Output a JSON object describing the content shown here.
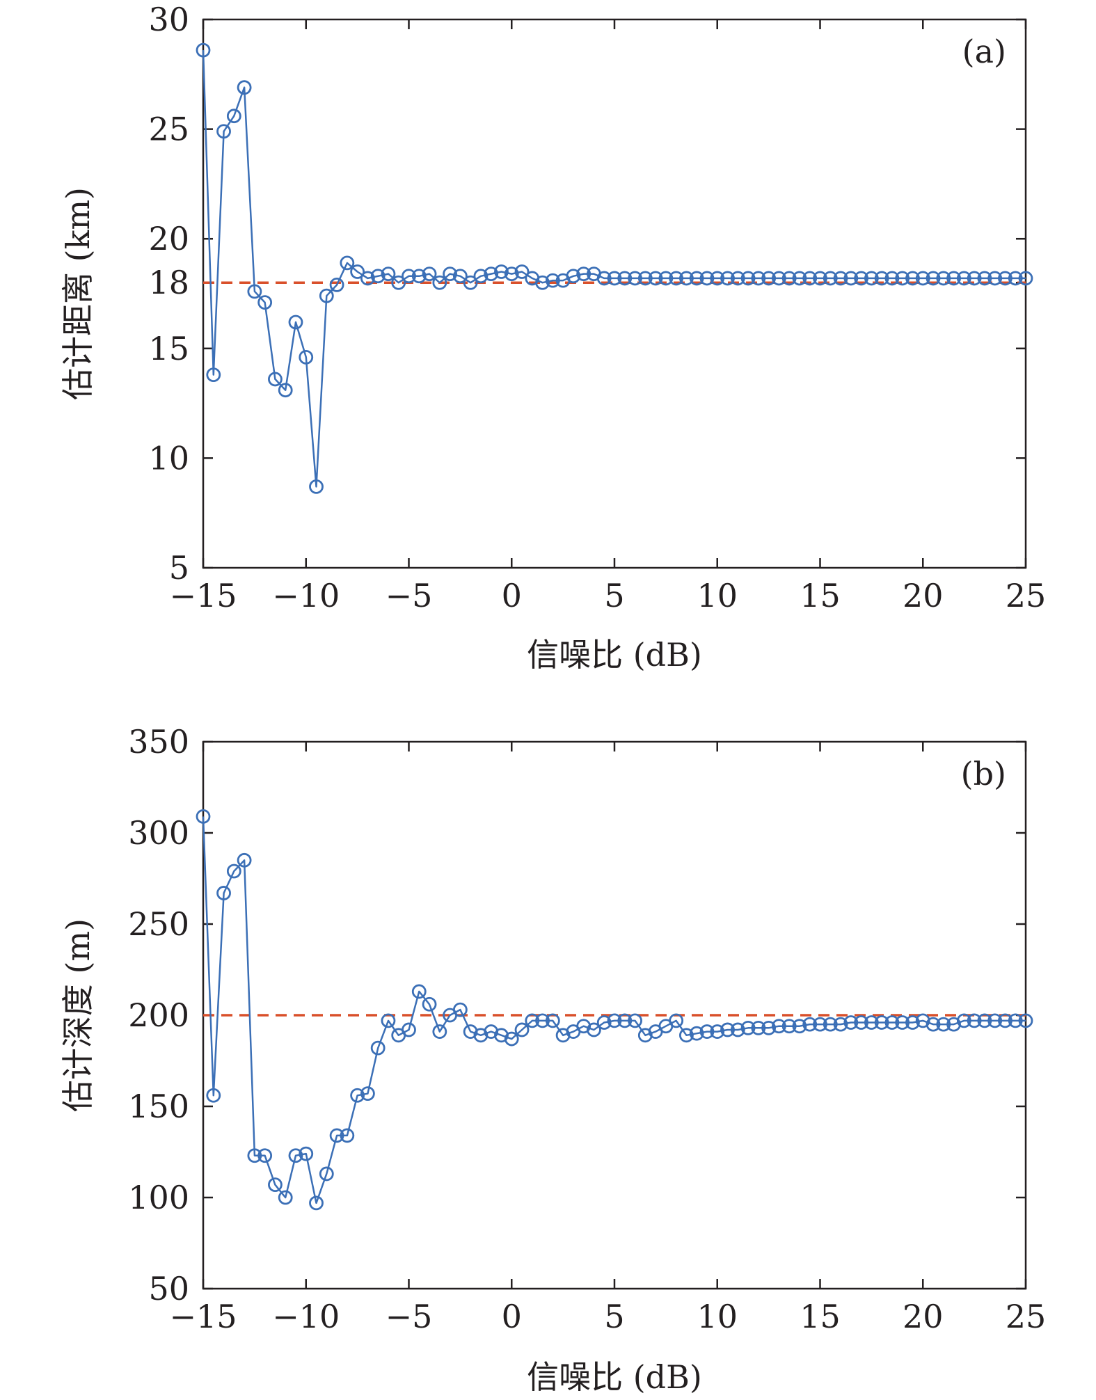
{
  "chart_data": [
    {
      "type": "line",
      "panel_label": "(a)",
      "xlabel": "信噪比 (dB)",
      "ylabel": "估计距离 (km)",
      "xlim": [
        -15,
        25
      ],
      "ylim": [
        5,
        30
      ],
      "xticks": [
        -15,
        -10,
        -5,
        0,
        5,
        10,
        15,
        20,
        25
      ],
      "xtick_labels": [
        "−15",
        "−10",
        "−5",
        "0",
        "5",
        "10",
        "15",
        "20",
        "25"
      ],
      "yticks": [
        5,
        10,
        15,
        18,
        20,
        25,
        30
      ],
      "ytick_labels": [
        "5",
        "10",
        "15",
        "18",
        "20",
        "25",
        "30"
      ],
      "grid": false,
      "series": [
        {
          "name": "",
          "marker": "open-circle",
          "color": "#3b6fb6",
          "x": [
            -15,
            -14.5,
            -14,
            -13.5,
            -13,
            -12.5,
            -12,
            -11.5,
            -11,
            -10.5,
            -10,
            -9.5,
            -9,
            -8.5,
            -8,
            -7.5,
            -7,
            -6.5,
            -6,
            -5.5,
            -5,
            -4.5,
            -4,
            -3.5,
            -3,
            -2.5,
            -2,
            -1.5,
            -1,
            -0.5,
            0,
            0.5,
            1,
            1.5,
            2,
            2.5,
            3,
            3.5,
            4,
            4.5,
            5,
            5.5,
            6,
            6.5,
            7,
            7.5,
            8,
            8.5,
            9,
            9.5,
            10,
            10.5,
            11,
            11.5,
            12,
            12.5,
            13,
            13.5,
            14,
            14.5,
            15,
            15.5,
            16,
            16.5,
            17,
            17.5,
            18,
            18.5,
            19,
            19.5,
            20,
            20.5,
            21,
            21.5,
            22,
            22.5,
            23,
            23.5,
            24,
            24.5,
            25
          ],
          "y": [
            28.6,
            13.8,
            24.9,
            25.6,
            26.9,
            17.6,
            17.1,
            13.6,
            13.1,
            16.2,
            14.6,
            8.7,
            17.4,
            17.9,
            18.9,
            18.5,
            18.2,
            18.3,
            18.4,
            18.0,
            18.3,
            18.3,
            18.4,
            18.0,
            18.4,
            18.3,
            18.0,
            18.3,
            18.4,
            18.5,
            18.4,
            18.5,
            18.2,
            18.0,
            18.1,
            18.1,
            18.3,
            18.4,
            18.4,
            18.2,
            18.2,
            18.2,
            18.2,
            18.2,
            18.2,
            18.2,
            18.2,
            18.2,
            18.2,
            18.2,
            18.2,
            18.2,
            18.2,
            18.2,
            18.2,
            18.2,
            18.2,
            18.2,
            18.2,
            18.2,
            18.2,
            18.2,
            18.2,
            18.2,
            18.2,
            18.2,
            18.2,
            18.2,
            18.2,
            18.2,
            18.2,
            18.2,
            18.2,
            18.2,
            18.2,
            18.2,
            18.2,
            18.2,
            18.2,
            18.2,
            18.2
          ]
        }
      ],
      "reference_line": {
        "y": 18,
        "style": "dashed",
        "color": "#d9502b"
      }
    },
    {
      "type": "line",
      "panel_label": "(b)",
      "xlabel": "信噪比 (dB)",
      "ylabel": "估计深度 (m)",
      "xlim": [
        -15,
        25
      ],
      "ylim": [
        50,
        350
      ],
      "xticks": [
        -15,
        -10,
        -5,
        0,
        5,
        10,
        15,
        20,
        25
      ],
      "xtick_labels": [
        "−15",
        "−10",
        "−5",
        "0",
        "5",
        "10",
        "15",
        "20",
        "25"
      ],
      "yticks": [
        50,
        100,
        150,
        200,
        250,
        300,
        350
      ],
      "ytick_labels": [
        "50",
        "100",
        "150",
        "200",
        "250",
        "300",
        "350"
      ],
      "grid": false,
      "series": [
        {
          "name": "",
          "marker": "open-circle",
          "color": "#3b6fb6",
          "x": [
            -15,
            -14.5,
            -14,
            -13.5,
            -13,
            -12.5,
            -12,
            -11.5,
            -11,
            -10.5,
            -10,
            -9.5,
            -9,
            -8.5,
            -8,
            -7.5,
            -7,
            -6.5,
            -6,
            -5.5,
            -5,
            -4.5,
            -4,
            -3.5,
            -3,
            -2.5,
            -2,
            -1.5,
            -1,
            -0.5,
            0,
            0.5,
            1,
            1.5,
            2,
            2.5,
            3,
            3.5,
            4,
            4.5,
            5,
            5.5,
            6,
            6.5,
            7,
            7.5,
            8,
            8.5,
            9,
            9.5,
            10,
            10.5,
            11,
            11.5,
            12,
            12.5,
            13,
            13.5,
            14,
            14.5,
            15,
            15.5,
            16,
            16.5,
            17,
            17.5,
            18,
            18.5,
            19,
            19.5,
            20,
            20.5,
            21,
            21.5,
            22,
            22.5,
            23,
            23.5,
            24,
            24.5,
            25
          ],
          "y": [
            309,
            156,
            267,
            279,
            285,
            123,
            123,
            107,
            100,
            123,
            124,
            97,
            113,
            134,
            134,
            156,
            157,
            182,
            197,
            189,
            192,
            213,
            206,
            191,
            200,
            203,
            191,
            189,
            191,
            189,
            187,
            192,
            197,
            197,
            197,
            189,
            191,
            194,
            192,
            196,
            197,
            197,
            197,
            189,
            191,
            194,
            197,
            189,
            190,
            191,
            191,
            192,
            192,
            193,
            193,
            193,
            194,
            194,
            194,
            195,
            195,
            195,
            195,
            196,
            196,
            196,
            196,
            196,
            196,
            196,
            197,
            195,
            195,
            195,
            197,
            197,
            197,
            197,
            197,
            197,
            197
          ]
        }
      ],
      "reference_line": {
        "y": 200,
        "style": "dashed",
        "color": "#d9502b"
      }
    }
  ]
}
